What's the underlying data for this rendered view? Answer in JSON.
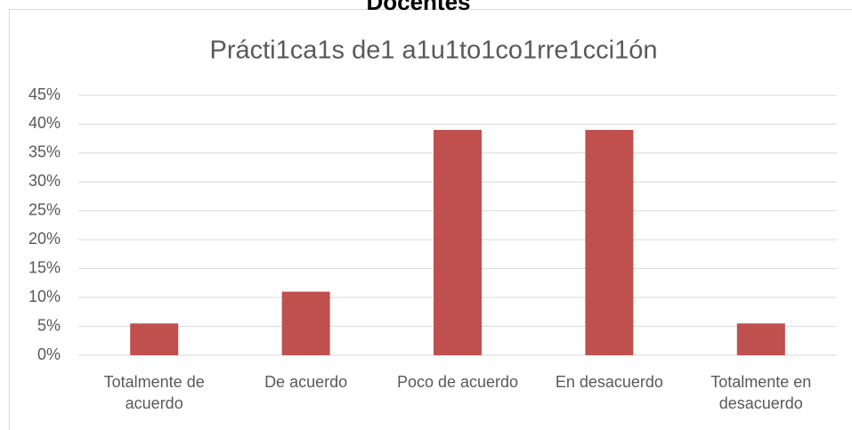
{
  "heading": "Docentes",
  "chart_data": {
    "type": "bar",
    "title": "Prácti1ca1s de1 a1u1to1co1rre1cci1ón",
    "categories": [
      "Totalmente de acuerdo",
      "De acuerdo",
      "Poco de acuerdo",
      "En desacuerdo",
      "Totalmente en desacuerdo"
    ],
    "values": [
      5.5,
      11,
      39,
      39,
      5.5
    ],
    "color": "#c0504d",
    "ylim": [
      0,
      45
    ],
    "yticks": [
      {
        "value": 0,
        "label": "0%"
      },
      {
        "value": 5,
        "label": "5%"
      },
      {
        "value": 10,
        "label": "10%"
      },
      {
        "value": 15,
        "label": "15%"
      },
      {
        "value": 20,
        "label": "20%"
      },
      {
        "value": 25,
        "label": "25%"
      },
      {
        "value": 30,
        "label": "30%"
      },
      {
        "value": 35,
        "label": "35%"
      },
      {
        "value": 40,
        "label": "40%"
      },
      {
        "value": 45,
        "label": "45%"
      }
    ],
    "grid": true
  }
}
